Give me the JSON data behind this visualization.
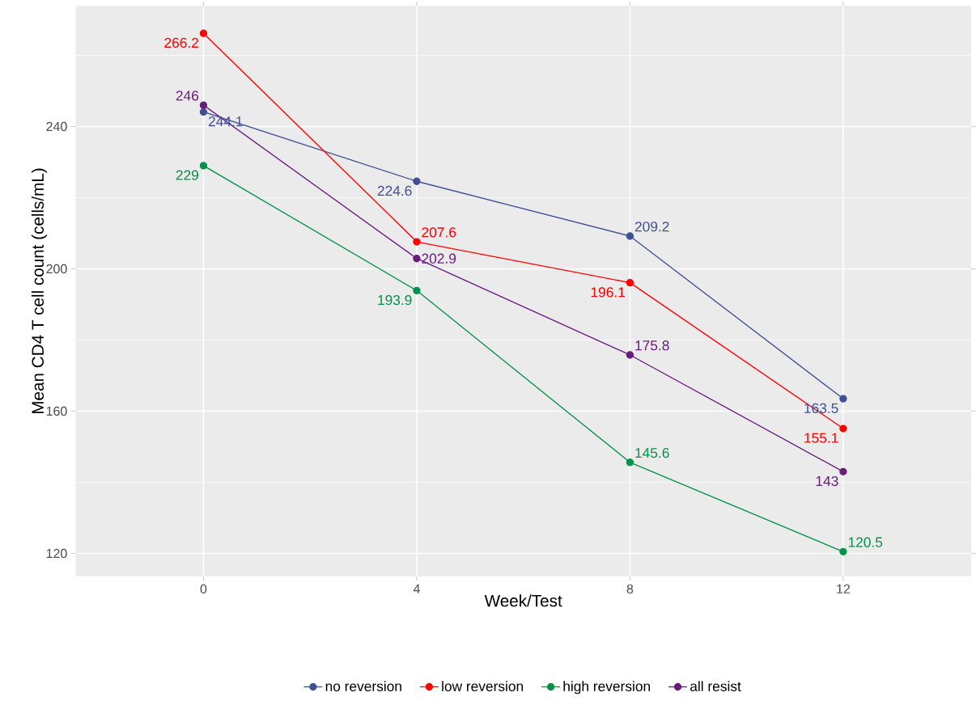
{
  "chart_data": {
    "type": "line",
    "xlabel": "Week/Test",
    "ylabel": "Mean CD4 T cell count (cells/mL)",
    "x": [
      0,
      4,
      8,
      12
    ],
    "series": [
      {
        "name": "no reversion",
        "color": "#3f4f96",
        "values": [
          244.1,
          224.6,
          209.2,
          163.5
        ]
      },
      {
        "name": "low reversion",
        "color": "#ff0000",
        "values": [
          266.2,
          207.6,
          196.1,
          155.1
        ]
      },
      {
        "name": "high reversion",
        "color": "#00934a",
        "values": [
          229,
          193.9,
          145.6,
          120.5
        ]
      },
      {
        "name": "all resist",
        "color": "#6a1b7f",
        "values": [
          246,
          202.9,
          175.8,
          143
        ]
      }
    ],
    "xlim": [
      -2.4,
      14.4
    ],
    "xticks": [
      0,
      4,
      8,
      12
    ],
    "ylim": [
      113.6,
      273.9
    ],
    "yticks": [
      120,
      160,
      200,
      240
    ],
    "grid": true,
    "legend": "bottom",
    "marker": "circle",
    "line_style": "solid",
    "data_labels": true
  }
}
